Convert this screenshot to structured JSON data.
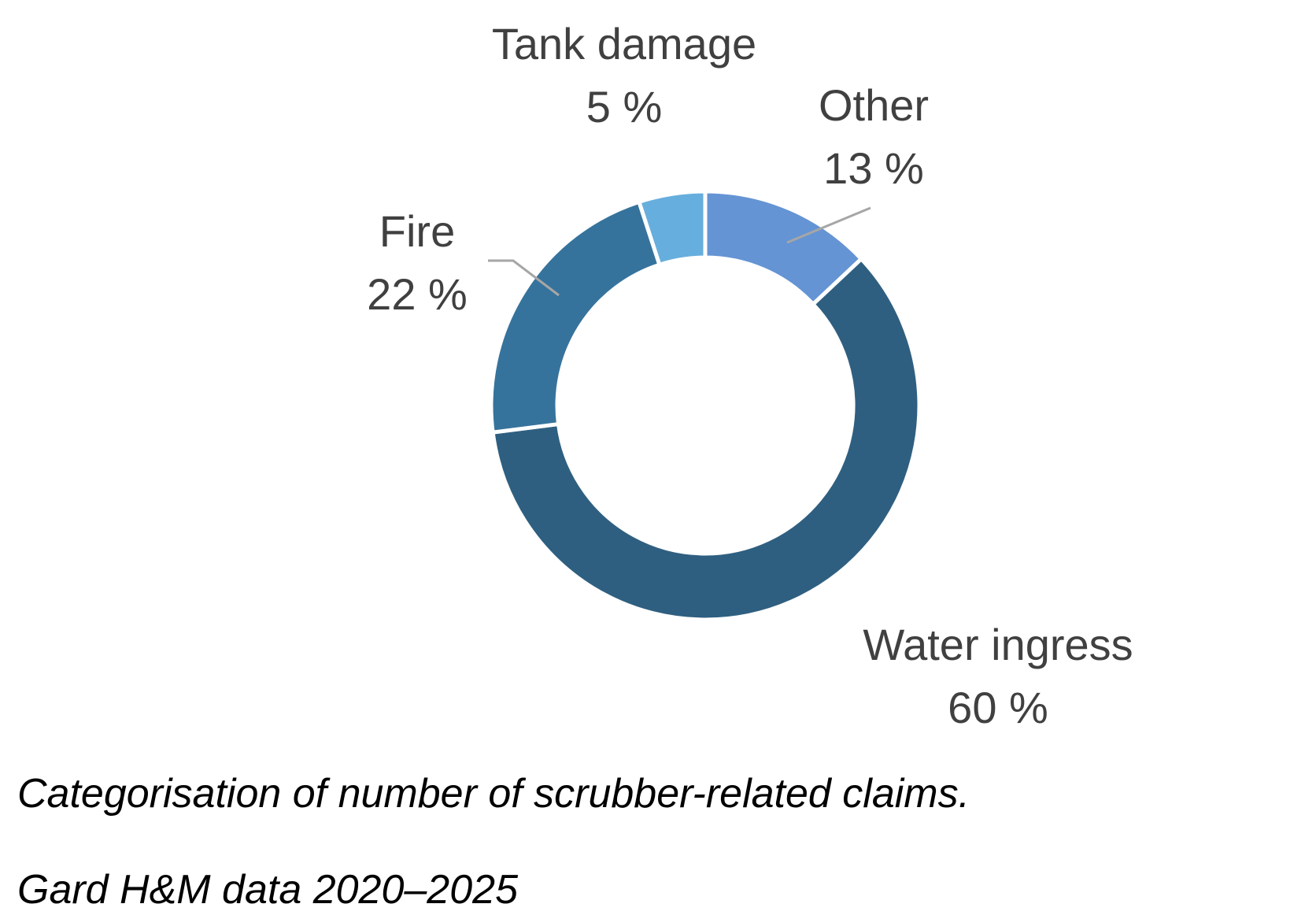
{
  "chart_data": {
    "type": "pie",
    "variant": "donut",
    "start_angle_deg": 0,
    "direction": "clockwise",
    "slices": [
      {
        "label": "Other",
        "value": 13,
        "value_label": "13 %",
        "color": "#6494D4"
      },
      {
        "label": "Water ingress",
        "value": 60,
        "value_label": "60 %",
        "color": "#2F5F80"
      },
      {
        "label": "Fire",
        "value": 22,
        "value_label": "22 %",
        "color": "#36739C"
      },
      {
        "label": "Tank damage",
        "value": 5,
        "value_label": "5 %",
        "color": "#66AEDD"
      }
    ],
    "leader_line_color": "#A6A6A6",
    "label_color": "#404040",
    "legend": "none"
  },
  "caption": {
    "line1": "Categorisation of number of scrubber-related claims.",
    "line2": "Gard H&M data 2020–2025"
  }
}
